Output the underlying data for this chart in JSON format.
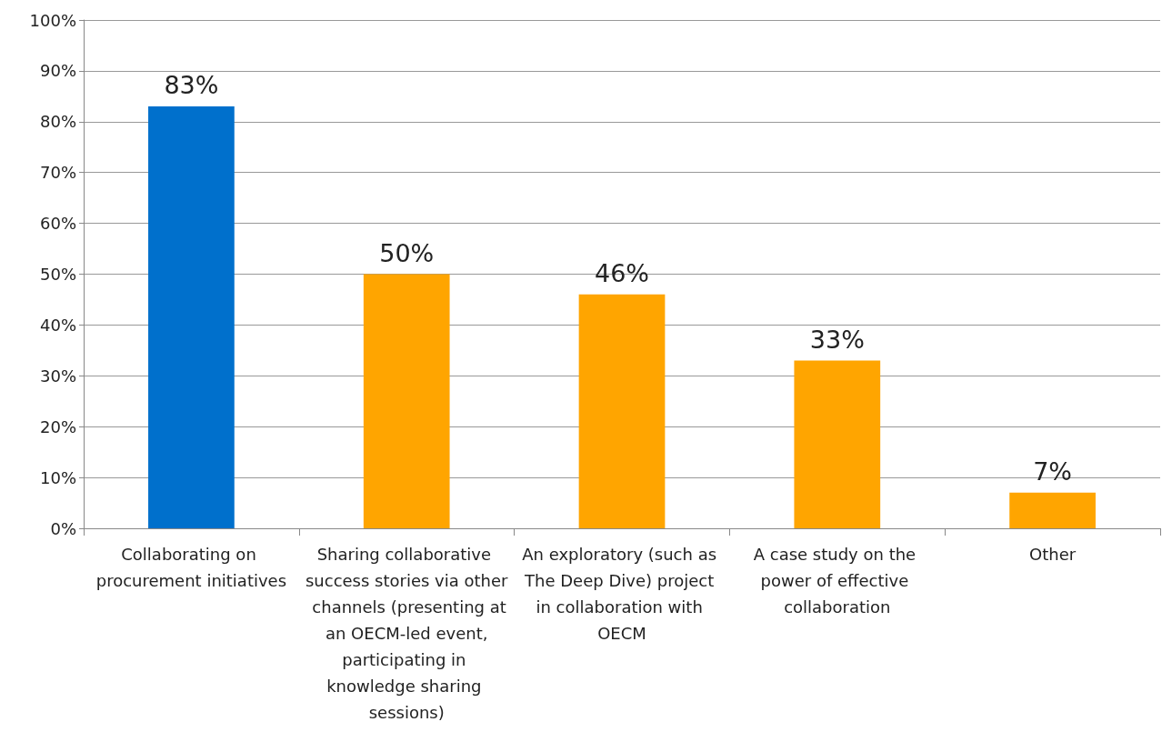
{
  "chart_data": {
    "type": "bar",
    "categories": [
      "Collaborating on procurement initiatives",
      "Sharing collaborative success stories via other channels (presenting at an OECM-led event, participating in knowledge sharing sessions)",
      "An exploratory (such as The Deep Dive) project in collaboration with OECM",
      "A case study on the power of effective collaboration",
      "Other"
    ],
    "values": [
      83,
      50,
      46,
      33,
      7
    ],
    "colors": [
      "#0070cc",
      "#ffa500",
      "#ffa500",
      "#ffa500",
      "#ffa500"
    ],
    "value_labels": [
      "83%",
      "50%",
      "46%",
      "33%",
      "7%"
    ],
    "ylim": [
      0,
      100
    ],
    "yticks": [
      {
        "value": 0,
        "label": "0%"
      },
      {
        "value": 10,
        "label": "10%"
      },
      {
        "value": 20,
        "label": "20%"
      },
      {
        "value": 30,
        "label": "30%"
      },
      {
        "value": 40,
        "label": "40%"
      },
      {
        "value": 50,
        "label": "50%"
      },
      {
        "value": 60,
        "label": "60%"
      },
      {
        "value": 70,
        "label": "70%"
      },
      {
        "value": 80,
        "label": "80%"
      },
      {
        "value": 90,
        "label": "90%"
      },
      {
        "value": 100,
        "label": "100%"
      }
    ],
    "grid": "y"
  }
}
